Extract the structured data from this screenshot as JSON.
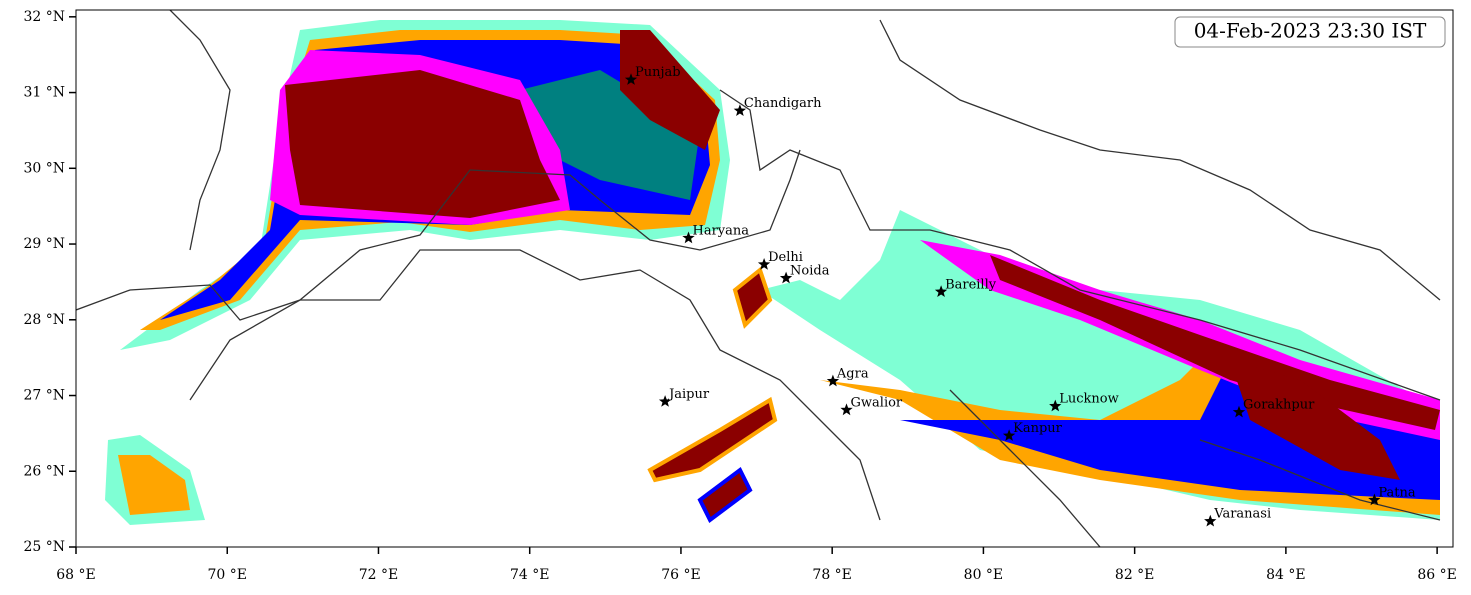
{
  "chart_data": {
    "type": "map",
    "timestamp": "04-Feb-2023 23:30 IST",
    "xlim": [
      68,
      86.21
    ],
    "ylim": [
      25,
      32.09
    ],
    "xticks": [
      {
        "value": 68,
        "label": "68 °E"
      },
      {
        "value": 70,
        "label": "70 °E"
      },
      {
        "value": 72,
        "label": "72 °E"
      },
      {
        "value": 74,
        "label": "74 °E"
      },
      {
        "value": 76,
        "label": "76 °E"
      },
      {
        "value": 78,
        "label": "78 °E"
      },
      {
        "value": 80,
        "label": "80 °E"
      },
      {
        "value": 82,
        "label": "82 °E"
      },
      {
        "value": 84,
        "label": "84 °E"
      },
      {
        "value": 86,
        "label": "86 °E"
      }
    ],
    "yticks": [
      {
        "value": 25,
        "label": "25 °N"
      },
      {
        "value": 26,
        "label": "26 °N"
      },
      {
        "value": 27,
        "label": "27 °N"
      },
      {
        "value": 28,
        "label": "28 °N"
      },
      {
        "value": 29,
        "label": "29 °N"
      },
      {
        "value": 30,
        "label": "30 °N"
      },
      {
        "value": 31,
        "label": "31 °N"
      },
      {
        "value": 32,
        "label": "32 °N"
      }
    ],
    "cities": {
      "names": [
        "Punjab",
        "Chandigarh",
        "Haryana",
        "Delhi",
        "Noida",
        "Bareilly",
        "Jaipur",
        "Agra",
        "Gwalior",
        "Lucknow",
        "Kanpur",
        "Gorakhpur",
        "Varanasi",
        "Patna"
      ],
      "lon": [
        75.34,
        76.78,
        76.1,
        77.1,
        77.39,
        79.44,
        75.79,
        78.01,
        78.19,
        80.95,
        80.34,
        83.38,
        83.0,
        85.17
      ],
      "lat": [
        31.17,
        30.76,
        29.08,
        28.73,
        28.55,
        28.37,
        26.92,
        27.19,
        26.81,
        26.86,
        26.47,
        26.78,
        25.34,
        25.62
      ]
    },
    "marker_color": "#000000"
  }
}
